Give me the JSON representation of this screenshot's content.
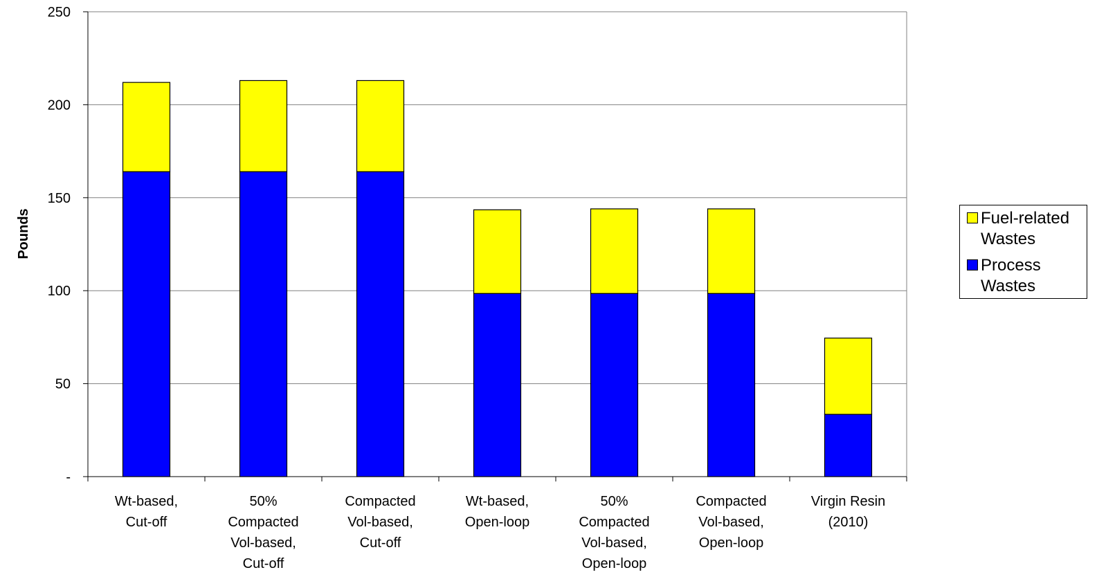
{
  "chart_data": {
    "type": "bar",
    "stacked": true,
    "ylabel": "Pounds",
    "xlabel": "",
    "ylim": [
      0,
      250
    ],
    "yticks": [
      {
        "value": 0,
        "label": "-"
      },
      {
        "value": 50,
        "label": "50"
      },
      {
        "value": 100,
        "label": "100"
      },
      {
        "value": 150,
        "label": "150"
      },
      {
        "value": 200,
        "label": "200"
      },
      {
        "value": 250,
        "label": "250"
      }
    ],
    "grid": true,
    "legend_position": "right",
    "categories": [
      [
        "Wt-based,",
        "Cut-off"
      ],
      [
        "50%",
        "Compacted",
        "Vol-based,",
        "Cut-off"
      ],
      [
        "Compacted",
        "Vol-based,",
        "Cut-off"
      ],
      [
        "Wt-based,",
        "Open-loop"
      ],
      [
        "50%",
        "Compacted",
        "Vol-based,",
        "Open-loop"
      ],
      [
        "Compacted",
        "Vol-based,",
        "Open-loop"
      ],
      [
        "Virgin Resin",
        "(2010)"
      ]
    ],
    "series": [
      {
        "name": "Process Wastes",
        "color": "#0000FF",
        "values": [
          164,
          164,
          164,
          98.5,
          98.5,
          98.5,
          33.5
        ]
      },
      {
        "name": "Fuel-related Wastes",
        "color": "#FFFF00",
        "values": [
          48,
          49,
          49,
          45,
          45.5,
          45.5,
          41
        ]
      }
    ]
  },
  "legend": {
    "items": [
      {
        "label_lines": [
          "Fuel-related",
          "Wastes"
        ],
        "color": "#FFFF00"
      },
      {
        "label_lines": [
          "Process",
          "Wastes"
        ],
        "color": "#0000FF"
      }
    ]
  }
}
